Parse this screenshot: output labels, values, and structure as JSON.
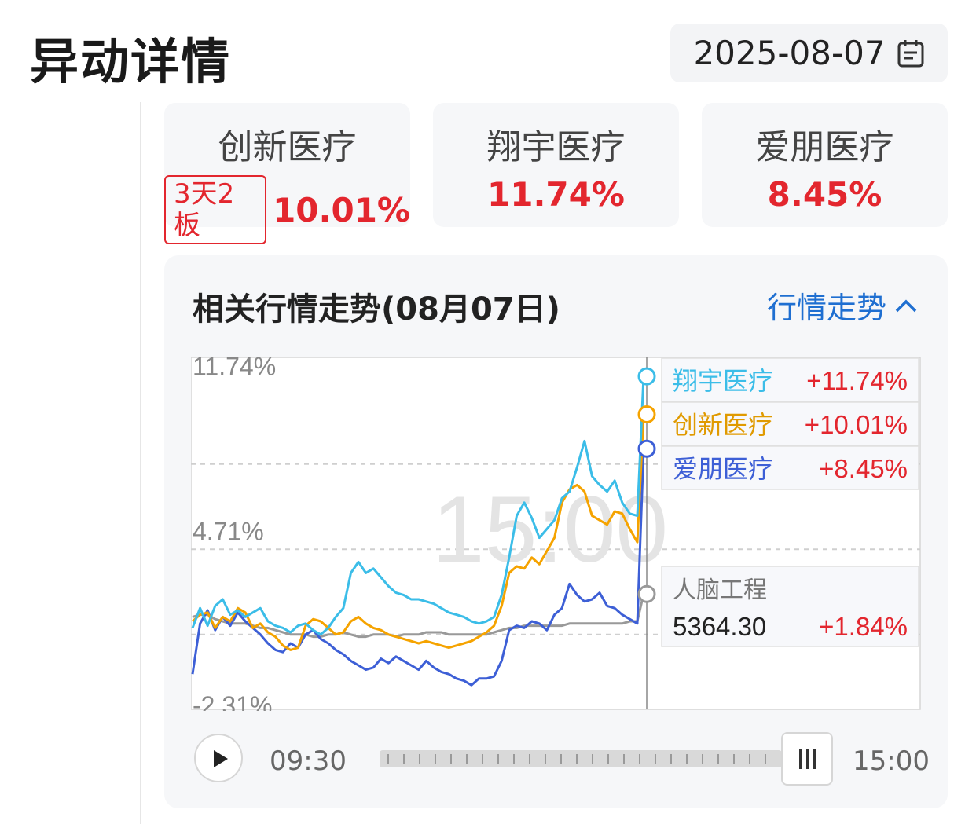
{
  "header": {
    "title": "异动详情",
    "date": "2025-08-07"
  },
  "stocks": [
    {
      "name": "创新医疗",
      "badge": "3天2板",
      "change": "10.01%"
    },
    {
      "name": "翔宇医疗",
      "change": "11.74%"
    },
    {
      "name": "爱朋医疗",
      "change": "8.45%"
    }
  ],
  "panel": {
    "title": "相关行情走势(08月07日)",
    "toggle_label": "行情走势",
    "start_time": "09:30",
    "end_time": "15:00"
  },
  "chart_data": {
    "type": "line",
    "x_range": [
      "09:30",
      "15:00"
    ],
    "y_ticks": [
      "11.74%",
      "4.71%",
      "-2.31%"
    ],
    "ylim": [
      -2.31,
      11.74
    ],
    "watermark": "15:00",
    "grid": "dashed-horizontal",
    "legend": "right",
    "series": [
      {
        "name": "翔宇医疗",
        "legend_value": "+11.74%",
        "color": "#3bbde8",
        "values": [
          0.3,
          1.2,
          0.4,
          1.3,
          1.6,
          0.9,
          1.1,
          0.8,
          1.0,
          1.2,
          0.6,
          0.4,
          0.3,
          0.1,
          0.4,
          0.5,
          0.2,
          0.0,
          0.3,
          0.8,
          1.2,
          2.8,
          3.3,
          2.8,
          3.0,
          2.6,
          2.2,
          1.9,
          1.8,
          1.6,
          1.6,
          1.5,
          1.4,
          1.2,
          1.0,
          0.9,
          0.8,
          0.6,
          0.5,
          0.6,
          0.8,
          1.8,
          3.5,
          5.4,
          6.0,
          5.3,
          4.4,
          4.8,
          5.2,
          6.2,
          6.5,
          7.6,
          8.8,
          7.2,
          6.8,
          6.5,
          7.0,
          6.0,
          5.5,
          5.4,
          11.74
        ]
      },
      {
        "name": "创新医疗",
        "legend_value": "+10.01%",
        "color": "#f5a300",
        "values": [
          0.6,
          0.9,
          1.0,
          0.3,
          0.8,
          0.6,
          1.2,
          1.0,
          0.3,
          0.5,
          0.1,
          -0.1,
          -0.5,
          -0.7,
          -0.6,
          0.4,
          0.7,
          0.6,
          0.3,
          0.0,
          0.1,
          0.6,
          0.8,
          0.5,
          0.3,
          0.2,
          0.0,
          -0.1,
          -0.2,
          -0.3,
          -0.4,
          -0.3,
          -0.4,
          -0.5,
          -0.6,
          -0.5,
          -0.4,
          -0.3,
          -0.1,
          0.1,
          0.4,
          1.3,
          2.8,
          3.1,
          3.0,
          3.5,
          3.2,
          3.8,
          4.4,
          6.0,
          6.6,
          6.8,
          6.5,
          5.4,
          5.2,
          5.0,
          5.6,
          5.5,
          4.8,
          4.2,
          10.01
        ]
      },
      {
        "name": "爱朋医疗",
        "legend_value": "+8.45%",
        "color": "#3d5fd6",
        "values": [
          -1.8,
          0.5,
          1.1,
          0.2,
          0.8,
          0.4,
          1.0,
          0.6,
          0.3,
          0.0,
          -0.4,
          -0.7,
          -0.8,
          -0.4,
          -0.6,
          0.0,
          0.2,
          -0.2,
          -0.4,
          -0.7,
          -0.9,
          -1.2,
          -1.4,
          -1.6,
          -1.5,
          -1.1,
          -1.3,
          -1.0,
          -1.2,
          -1.4,
          -1.6,
          -1.2,
          -1.5,
          -1.7,
          -1.8,
          -2.0,
          -2.1,
          -2.3,
          -2.0,
          -2.0,
          -1.9,
          -1.2,
          0.2,
          0.4,
          0.3,
          0.6,
          0.5,
          0.2,
          0.9,
          1.2,
          2.3,
          1.8,
          1.5,
          1.6,
          1.9,
          1.3,
          1.2,
          0.9,
          0.7,
          0.5,
          8.45
        ]
      },
      {
        "name": "人脑工程",
        "legend_value": "+1.84%",
        "legend_price": "5364.30",
        "color": "#999999",
        "values": [
          0.8,
          0.9,
          0.9,
          0.7,
          0.6,
          0.5,
          0.5,
          0.5,
          0.4,
          0.3,
          0.3,
          0.2,
          0.1,
          0.0,
          0.0,
          0.0,
          -0.1,
          -0.1,
          0.0,
          0.0,
          0.1,
          0.0,
          -0.1,
          -0.1,
          0.0,
          0.0,
          0.0,
          -0.1,
          0.0,
          0.0,
          0.0,
          0.1,
          0.1,
          0.1,
          0.0,
          0.0,
          0.0,
          0.0,
          0.0,
          0.0,
          0.1,
          0.2,
          0.3,
          0.3,
          0.4,
          0.4,
          0.4,
          0.4,
          0.4,
          0.4,
          0.5,
          0.5,
          0.5,
          0.5,
          0.5,
          0.5,
          0.5,
          0.5,
          0.6,
          0.6,
          1.84
        ]
      }
    ]
  }
}
